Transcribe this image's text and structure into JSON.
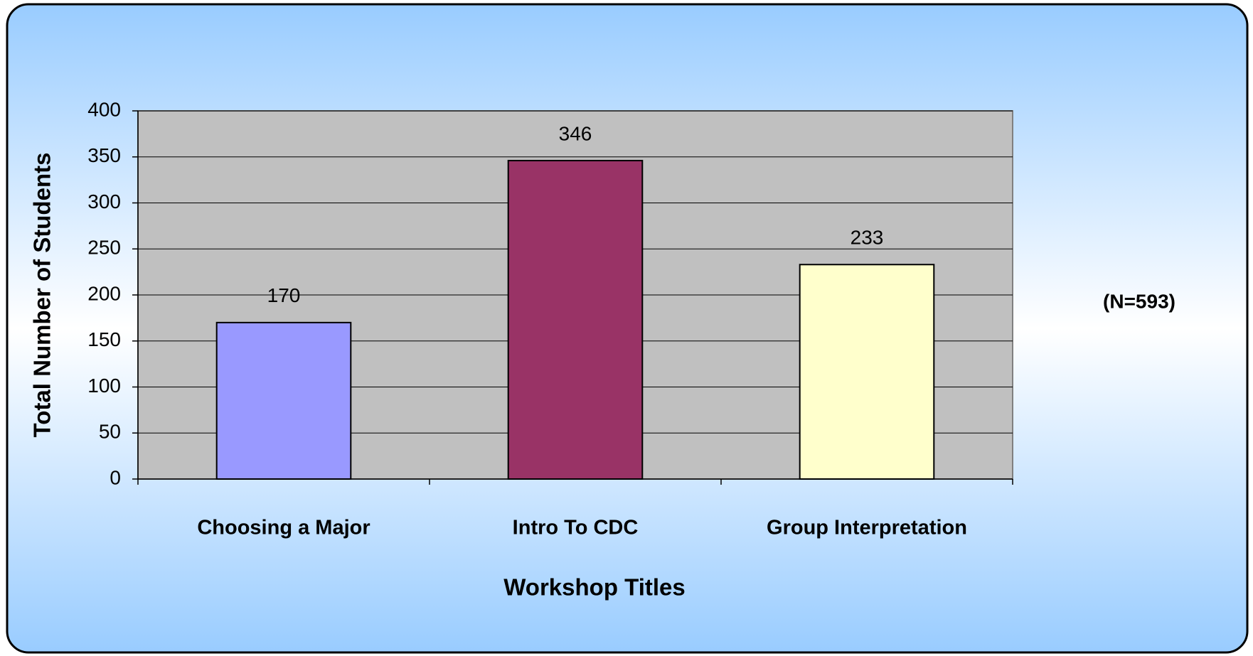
{
  "chart_data": {
    "type": "bar",
    "categories": [
      "Choosing a Major",
      "Intro To CDC",
      "Group Interpretation"
    ],
    "values": [
      170,
      346,
      233
    ],
    "colors": [
      "#9999ff",
      "#993366",
      "#ffffcc"
    ],
    "xlabel": "Workshop Titles",
    "ylabel": "Total Number of Students",
    "annotation": "(N=593)",
    "ylim": [
      0,
      400
    ],
    "yticks": [
      0,
      50,
      100,
      150,
      200,
      250,
      300,
      350,
      400
    ],
    "grid": true
  }
}
